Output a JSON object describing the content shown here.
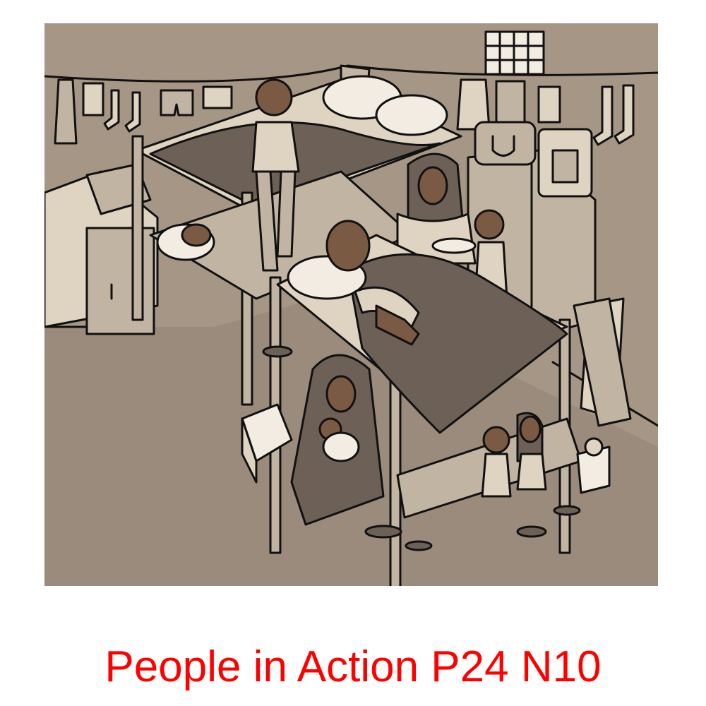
{
  "caption": {
    "text": "People in Action P24 N10",
    "color": "#ff0000"
  },
  "illustration": {
    "background_color": "#9b8b7c",
    "floor_color": "#8f8072",
    "wall_color": "#a69686",
    "light_color": "#dfd3c2",
    "mid_color": "#c2b4a2",
    "dark_color": "#6d6157",
    "skin_color": "#7a5a42",
    "outline_color": "#111111"
  }
}
